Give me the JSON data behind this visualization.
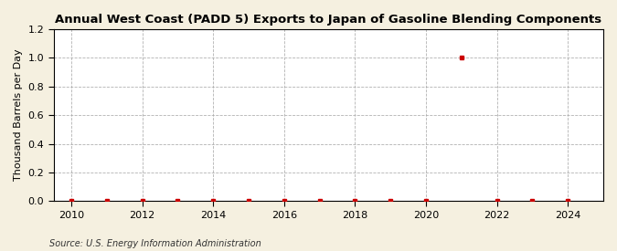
{
  "title": "Annual West Coast (PADD 5) Exports to Japan of Gasoline Blending Components",
  "ylabel": "Thousand Barrels per Day",
  "source": "Source: U.S. Energy Information Administration",
  "fig_background_color": "#f5f0e0",
  "plot_background_color": "#ffffff",
  "xlim": [
    2009.5,
    2025
  ],
  "ylim": [
    0.0,
    1.2
  ],
  "xticks": [
    2010,
    2012,
    2014,
    2016,
    2018,
    2020,
    2022,
    2024
  ],
  "yticks": [
    0.0,
    0.2,
    0.4,
    0.6,
    0.8,
    1.0,
    1.2
  ],
  "data_years": [
    2010,
    2011,
    2012,
    2013,
    2014,
    2015,
    2016,
    2017,
    2018,
    2019,
    2020,
    2021,
    2022,
    2023,
    2024
  ],
  "data_values": [
    0.0,
    0.0,
    0.0,
    0.0,
    0.0,
    0.0,
    0.0,
    0.0,
    0.0,
    0.0,
    0.0,
    1.0,
    0.0,
    0.0,
    0.0
  ],
  "marker_color": "#cc0000",
  "marker_size": 3,
  "grid_color": "#aaaaaa",
  "spine_color": "#000000",
  "title_fontsize": 9.5,
  "label_fontsize": 8,
  "tick_fontsize": 8,
  "source_fontsize": 7
}
